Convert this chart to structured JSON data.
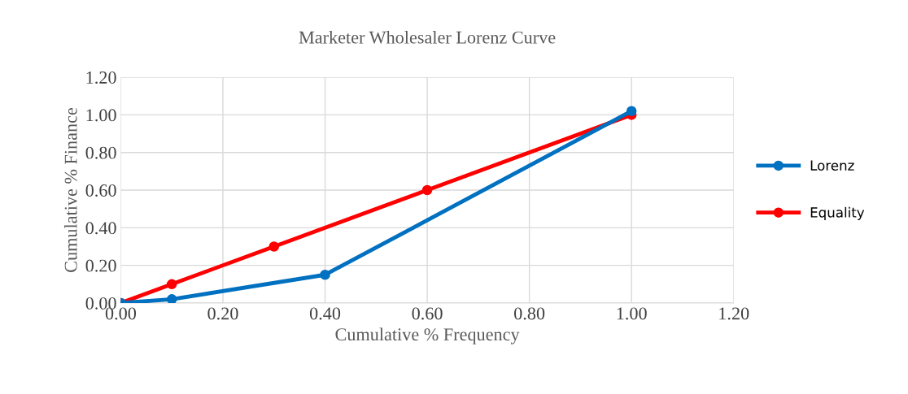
{
  "chart_data": {
    "type": "line",
    "title": "Marketer Wholesaler Lorenz Curve",
    "xlabel": "Cumulative % Frequency",
    "ylabel": "Cumulative % Finance",
    "series": [
      {
        "name": "Lorenz",
        "color": "#0070c0",
        "x": [
          0,
          0.1,
          0.4,
          1.0
        ],
        "values": [
          0,
          0.02,
          0.15,
          1.02
        ]
      },
      {
        "name": "Equality",
        "color": "#ff0000",
        "x": [
          0,
          0.1,
          0.3,
          0.6,
          1.0
        ],
        "values": [
          0,
          0.1,
          0.3,
          0.6,
          1.0
        ]
      }
    ],
    "xlim": [
      0,
      1.2
    ],
    "xticks": [
      {
        "value": 0,
        "label": "0.00"
      },
      {
        "value": 0.2,
        "label": "0.20"
      },
      {
        "value": 0.4,
        "label": "0.40"
      },
      {
        "value": 0.6,
        "label": "0.60"
      },
      {
        "value": 0.8,
        "label": "0.80"
      },
      {
        "value": 1.0,
        "label": "1.00"
      },
      {
        "value": 1.2,
        "label": "1.20"
      }
    ],
    "ylim": [
      0,
      1.2
    ],
    "yticks": [
      {
        "value": 0,
        "label": "0.00"
      },
      {
        "value": 0.2,
        "label": "0.20"
      },
      {
        "value": 0.4,
        "label": "0.40"
      },
      {
        "value": 0.6,
        "label": "0.60"
      },
      {
        "value": 0.8,
        "label": "0.80"
      },
      {
        "value": 1.0,
        "label": "1.00"
      },
      {
        "value": 1.2,
        "label": "1.20"
      }
    ],
    "grid": true,
    "legend": "right",
    "marker": "circle",
    "line_style": "solid"
  }
}
